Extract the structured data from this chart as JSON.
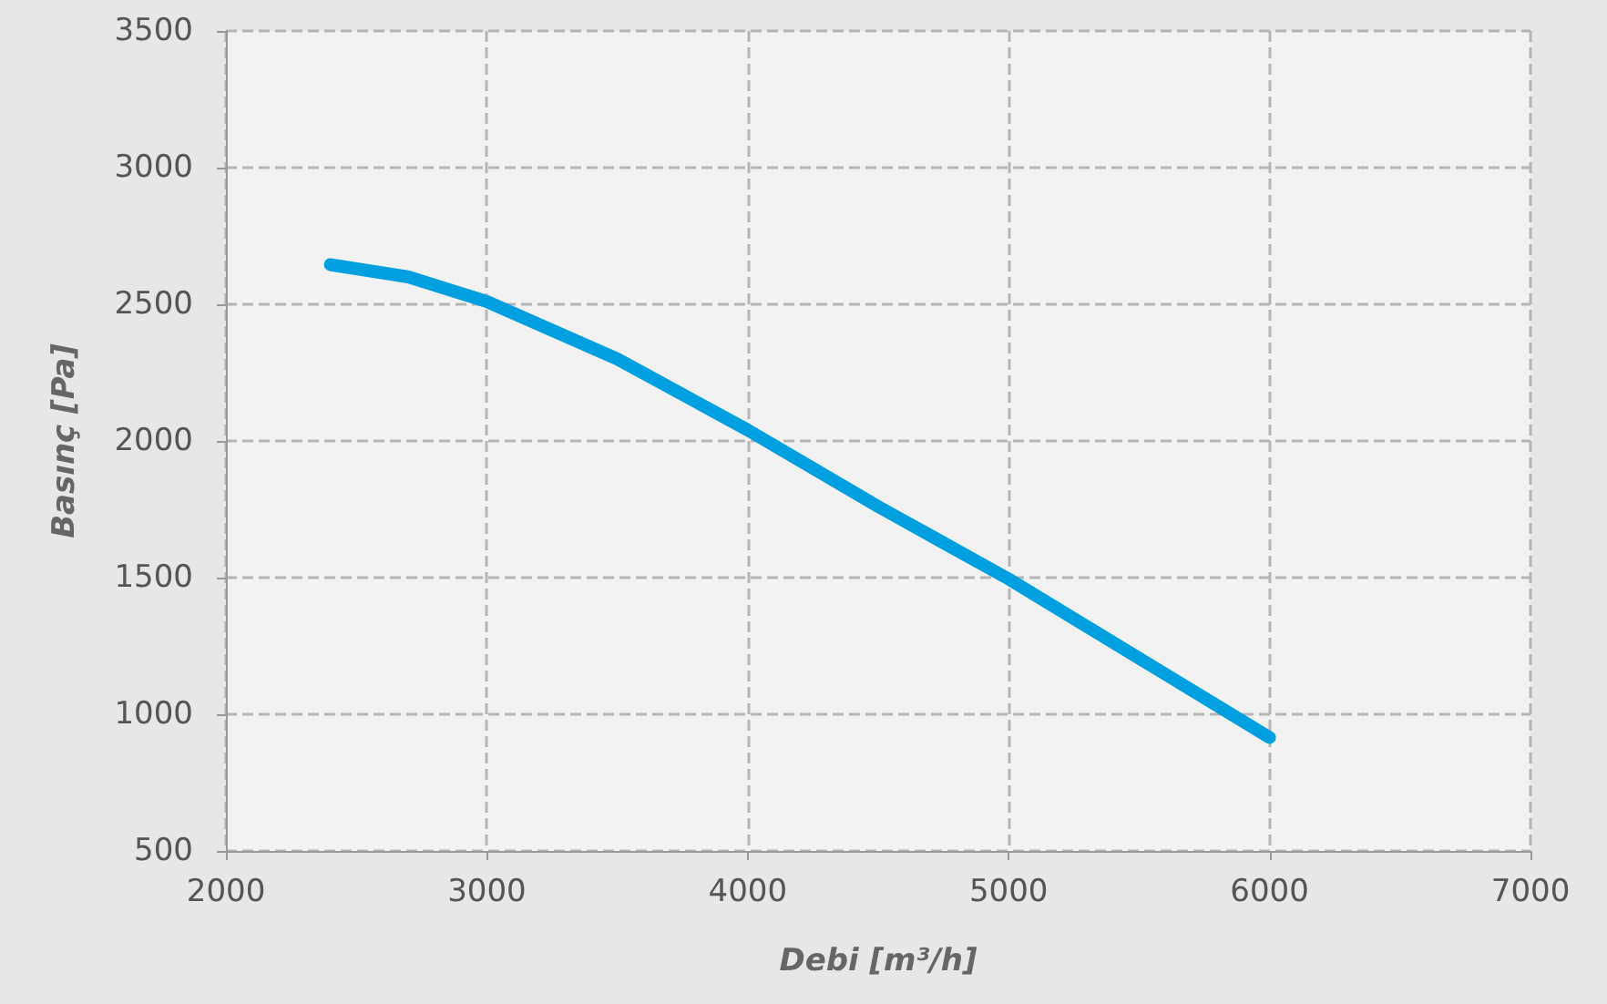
{
  "chart_data": {
    "type": "line",
    "xlabel": "Debi [m³/h]",
    "ylabel": "Basınç [Pa]",
    "x": [
      2400,
      2700,
      3000,
      3500,
      4000,
      4500,
      5000,
      5500,
      6000
    ],
    "series": [
      {
        "color": "#00a0e0",
        "values": [
          2645,
          2600,
          2510,
          2300,
          2040,
          1760,
          1495,
          1205,
          915
        ]
      }
    ],
    "xlim": [
      2000,
      7000
    ],
    "xticks": [
      2000,
      3000,
      4000,
      5000,
      6000,
      7000
    ],
    "ylim": [
      500,
      3500
    ],
    "yticks": [
      500,
      1000,
      1500,
      2000,
      2500,
      3000,
      3500
    ],
    "grid": true,
    "line_style": "solid"
  }
}
